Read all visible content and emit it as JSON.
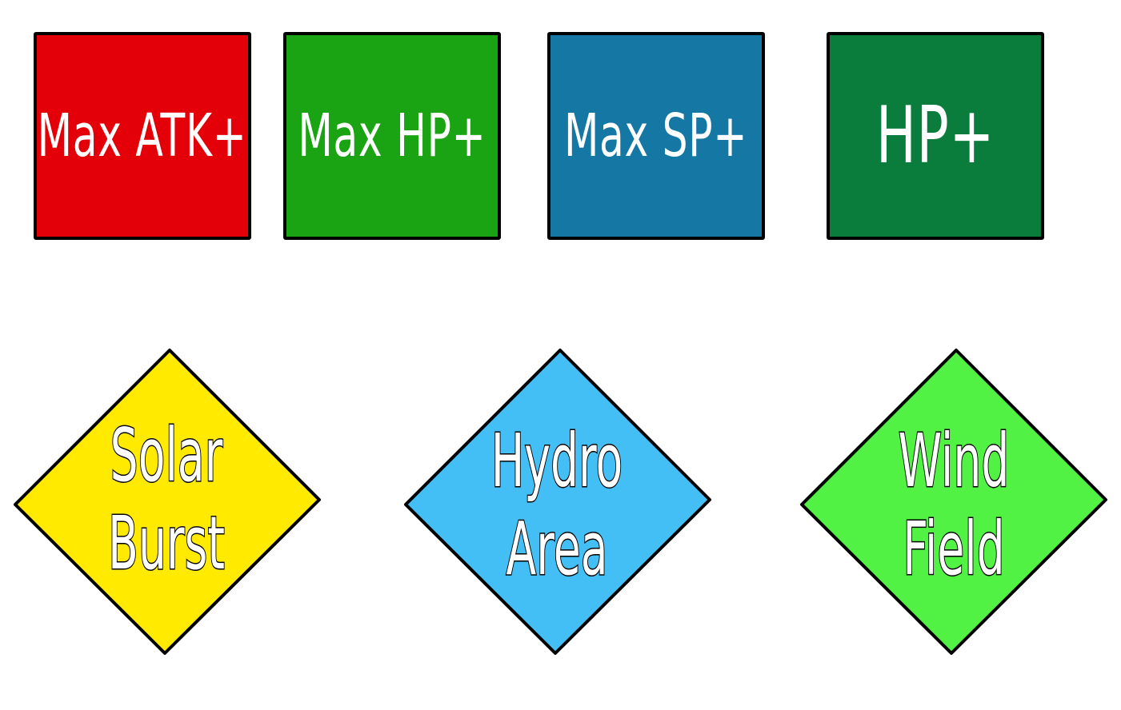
{
  "cards": [
    {
      "id": "card-max-atk",
      "label": "Max ATK+",
      "color": "#e30009"
    },
    {
      "id": "card-max-hp",
      "label": "Max HP+",
      "color": "#1aa312"
    },
    {
      "id": "card-max-sp",
      "label": "Max SP+",
      "color": "#1577a4"
    },
    {
      "id": "card-hp",
      "label": "HP+",
      "color": "#0a7c3c"
    }
  ],
  "fields": [
    {
      "id": "field-solar-burst",
      "line1": "Solar",
      "line2": "Burst",
      "color": "#ffea00"
    },
    {
      "id": "field-hydro-area",
      "line1": "Hydro",
      "line2": "Area",
      "color": "#43bff5"
    },
    {
      "id": "field-wind-field",
      "line1": "Wind",
      "line2": "Field",
      "color": "#52f244"
    }
  ]
}
